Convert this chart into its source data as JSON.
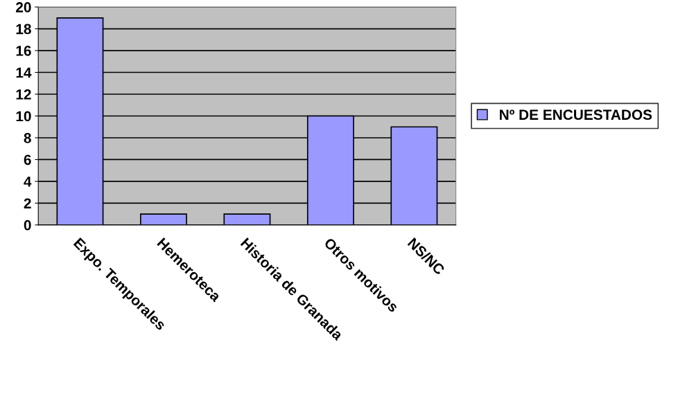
{
  "chart_data": {
    "type": "bar",
    "categories": [
      "Expo. Temporales",
      "Hemeroteca",
      "Historia de Granada",
      "Otros motivos",
      "NS/NC"
    ],
    "series": [
      {
        "name": "Nº DE ENCUESTADOS",
        "color": "#9999ff",
        "values": [
          19,
          1,
          1,
          10,
          9
        ]
      }
    ],
    "ylim": [
      0,
      20
    ],
    "yticks": [
      0,
      2,
      4,
      6,
      8,
      10,
      12,
      14,
      16,
      18,
      20
    ],
    "grid": "y",
    "legend": "right"
  }
}
